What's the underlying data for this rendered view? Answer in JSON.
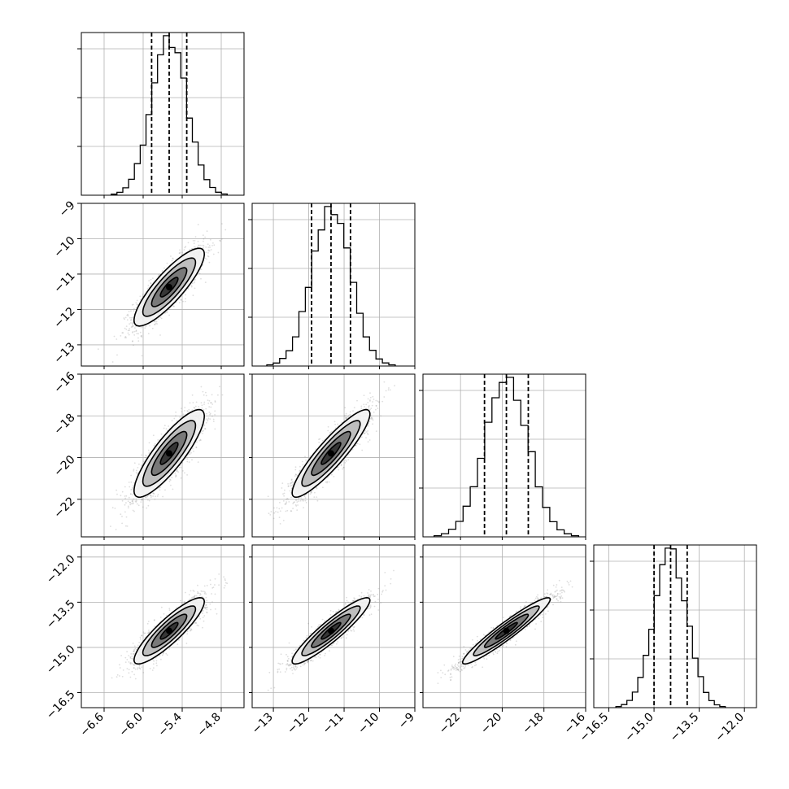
{
  "chart_data": {
    "type": "corner",
    "title": "",
    "parameters": [
      {
        "index": 0,
        "range": [
          -6.95,
          -4.45
        ],
        "ticks": [
          -6.6,
          -6.0,
          -5.4,
          -4.8
        ],
        "tick_labels": [
          "−6.6",
          "−6.0",
          "−5.4",
          "−4.8"
        ],
        "mean": -5.6,
        "sigma": 0.27,
        "quantiles": [
          -5.87,
          -5.6,
          -5.33
        ]
      },
      {
        "index": 1,
        "range": [
          -13.6,
          -9.0
        ],
        "ticks": [
          -13,
          -12,
          -11,
          -10,
          -9
        ],
        "tick_labels": [
          "−13",
          "−12",
          "−11",
          "−10",
          "−9"
        ],
        "mean": -11.37,
        "sigma": 0.55,
        "quantiles": [
          -11.92,
          -11.37,
          -10.82
        ]
      },
      {
        "index": 2,
        "range": [
          -23.8,
          -16.0
        ],
        "ticks": [
          -22,
          -20,
          -18,
          -16
        ],
        "tick_labels": [
          "−22",
          "−20",
          "−18",
          "−16"
        ],
        "mean": -19.8,
        "sigma": 1.05,
        "quantiles": [
          -20.85,
          -19.8,
          -18.75
        ]
      },
      {
        "index": 3,
        "range": [
          -17.0,
          -11.6
        ],
        "ticks": [
          -16.5,
          -15.0,
          -13.5,
          -12.0
        ],
        "tick_labels": [
          "−16.5",
          "−15.0",
          "−13.5",
          "−12.0"
        ],
        "mean": -14.45,
        "sigma": 0.55,
        "quantiles": [
          -15.0,
          -14.45,
          -13.9
        ]
      }
    ],
    "correlations": [
      [
        1,
        0.85,
        0.85,
        0.88
      ],
      [
        0.85,
        1,
        0.9,
        0.92
      ],
      [
        0.85,
        0.9,
        1,
        0.95
      ],
      [
        0.88,
        0.92,
        0.95,
        1
      ]
    ],
    "histogram_bins": 20,
    "contour_levels_sigma": [
      0.5,
      1.0,
      1.5,
      2.0
    ],
    "grid": true,
    "colors": {
      "line": "#000000",
      "points": "#7a7a7a",
      "grid": "#b0b0b0",
      "background": "#ffffff"
    }
  }
}
